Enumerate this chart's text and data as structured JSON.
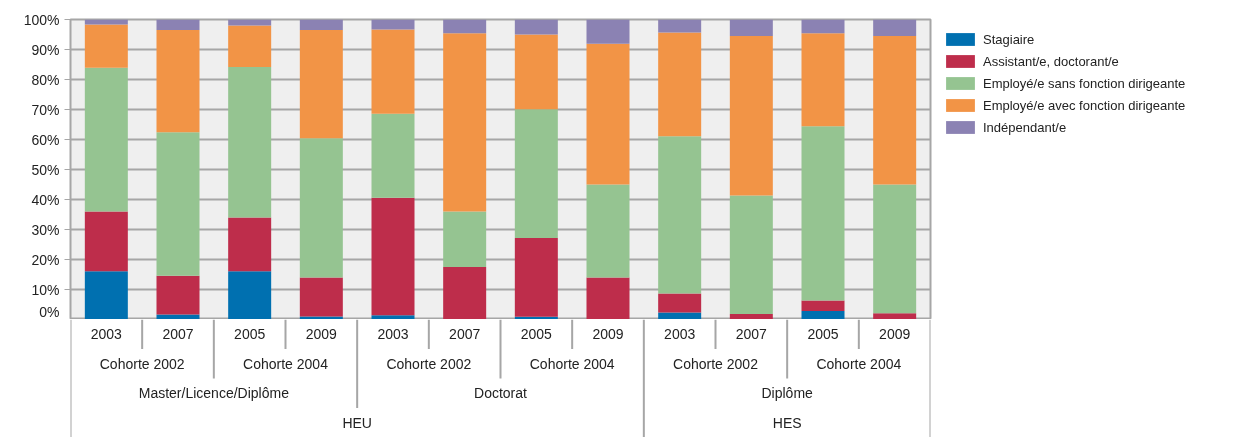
{
  "chart_data": {
    "type": "bar",
    "stacked": true,
    "categories": [
      [
        "HEU",
        "Master/Licence/Diplôme",
        "Cohorte 2002",
        "2003"
      ],
      [
        null,
        null,
        null,
        "2007"
      ],
      [
        null,
        null,
        "Cohorte 2004",
        "2005"
      ],
      [
        null,
        null,
        null,
        "2009"
      ],
      [
        null,
        "Doctorat",
        "Cohorte 2002",
        "2003"
      ],
      [
        null,
        null,
        null,
        "2007"
      ],
      [
        null,
        null,
        "Cohorte 2004",
        "2005"
      ],
      [
        null,
        null,
        null,
        "2009"
      ],
      [
        "HES",
        "Diplôme",
        "Cohorte 2002",
        "2003"
      ],
      [
        null,
        null,
        null,
        "2007"
      ],
      [
        null,
        null,
        "Cohorte 2004",
        "2005"
      ],
      [
        null,
        null,
        null,
        "2009"
      ]
    ],
    "series": [
      {
        "name": "Stagiaire",
        "color": "#0070b0",
        "values": [
          16.1,
          1.7,
          16.1,
          1.0,
          1.4,
          0,
          0.9,
          0,
          2.3,
          0,
          2.8,
          0
        ]
      },
      {
        "name": "Assistant/e, doctorant/e",
        "color": "#be2d4b",
        "values": [
          19.9,
          12.9,
          17.9,
          13.0,
          39.2,
          17.5,
          26.3,
          14.0,
          6.4,
          1.8,
          3.5,
          2.1
        ]
      },
      {
        "name": "Employé/e sans fonction dirigeante",
        "color": "#95c491",
        "values": [
          47.9,
          47.8,
          50.2,
          46.4,
          28.0,
          18.5,
          42.9,
          31.0,
          52.4,
          39.5,
          58.1,
          42.9
        ]
      },
      {
        "name": "Employé/e avec fonction dirigeante",
        "color": "#f29446",
        "values": [
          14.4,
          34.1,
          13.8,
          36.1,
          28.1,
          59.4,
          24.9,
          46.9,
          34.6,
          53.2,
          31.0,
          49.5
        ]
      },
      {
        "name": "Indépendant/e",
        "color": "#8b82b3",
        "values": [
          1.7,
          3.5,
          2.0,
          3.5,
          3.3,
          4.6,
          5.0,
          8.1,
          4.3,
          5.5,
          4.6,
          5.5
        ]
      }
    ],
    "ylim": [
      0,
      100
    ],
    "yticks": [
      {
        "value": 0,
        "label": "0%"
      },
      {
        "value": 10,
        "label": "10%"
      },
      {
        "value": 20,
        "label": "20%"
      },
      {
        "value": 30,
        "label": "30%"
      },
      {
        "value": 40,
        "label": "40%"
      },
      {
        "value": 50,
        "label": "50%"
      },
      {
        "value": 60,
        "label": "60%"
      },
      {
        "value": 70,
        "label": "70%"
      },
      {
        "value": 80,
        "label": "80%"
      },
      {
        "value": 90,
        "label": "90%"
      },
      {
        "value": 100,
        "label": "100%"
      }
    ],
    "grid": "y",
    "legend": "right"
  }
}
